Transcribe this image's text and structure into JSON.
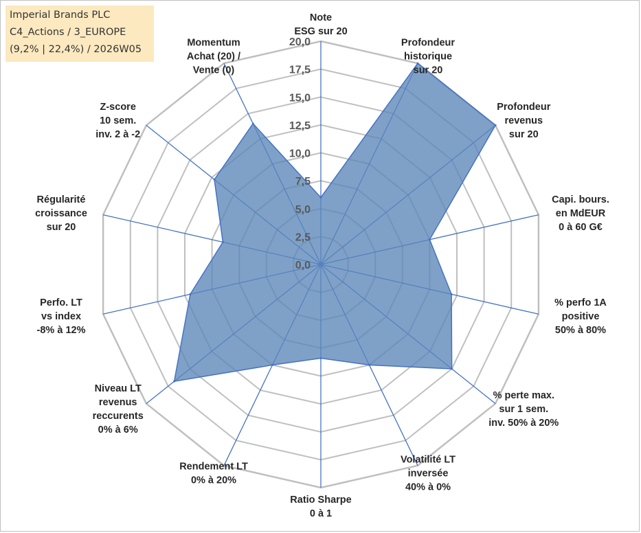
{
  "info": {
    "line1": "Imperial Brands PLC",
    "line2": "C4_Actions / 3_EUROPE",
    "line3": "(9,2% | 22,4%) / 2026W05"
  },
  "colors": {
    "fill": "#5b87b9",
    "stroke": "#4472c4",
    "grid": "#bfbfbf",
    "info_bg": "#fce9c0"
  },
  "chart_data": {
    "type": "radar",
    "r_min": 0,
    "r_max": 20,
    "tick_labels": [
      "0,0",
      "2,5",
      "5,0",
      "7,5",
      "10,0",
      "12,5",
      "15,0",
      "17,5",
      "20,0"
    ],
    "axes": [
      {
        "lines": [
          "Note",
          "ESG sur 20"
        ],
        "value": 6
      },
      {
        "lines": [
          "Profondeur",
          "historique",
          "sur 20"
        ],
        "value": 20
      },
      {
        "lines": [
          "Profondeur",
          "revenus",
          "sur 20"
        ],
        "value": 20
      },
      {
        "lines": [
          "Capi. bours.",
          "en MdEUR",
          "0 à 60 G€"
        ],
        "value": 10
      },
      {
        "lines": [
          "% perfo 1A",
          "positive",
          "50% à 80%"
        ],
        "value": 12
      },
      {
        "lines": [
          "% perte max.",
          "sur 1 sem.",
          "inv. 50% à 20%"
        ],
        "value": 15
      },
      {
        "lines": [
          "Volatilité LT",
          "inversée",
          "40% à 0%"
        ],
        "value": 10
      },
      {
        "lines": [
          "Ratio Sharpe",
          "0 à 1"
        ],
        "value": 8.4
      },
      {
        "lines": [
          "Rendement LT",
          "0% à 20%"
        ],
        "value": 10
      },
      {
        "lines": [
          "Niveau LT",
          "revenus",
          "reccurents",
          "0% à 6%"
        ],
        "value": 16.8
      },
      {
        "lines": [
          "Perfo. LT",
          "vs index",
          "-8% à 12%"
        ],
        "value": 12
      },
      {
        "lines": [
          "Régularité",
          "croissance",
          "sur 20"
        ],
        "value": 9
      },
      {
        "lines": [
          "Z-score",
          "10 sem.",
          "inv. 2 à -2"
        ],
        "value": 12.2
      },
      {
        "lines": [
          "Momentum",
          "Achat (20) /",
          "Vente (0)"
        ],
        "value": 14
      }
    ]
  }
}
